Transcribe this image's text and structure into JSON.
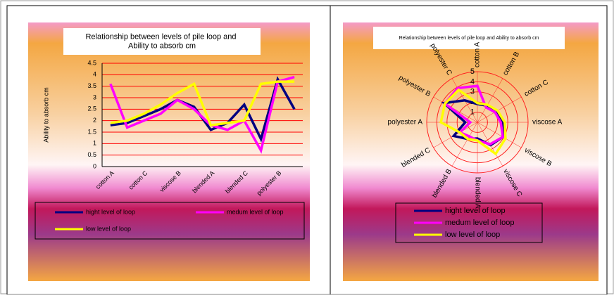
{
  "chart_data": [
    {
      "type": "line",
      "title": "Relationship between  levels of pile loop and Ability to absorb cm",
      "y_label": "Ability to absorb cm",
      "categories": [
        "cotton A",
        null,
        "cotton C",
        null,
        "viscose B",
        null,
        "blended A",
        null,
        "blended C",
        null,
        "polyester B",
        null
      ],
      "ylim": [
        0,
        4.5
      ],
      "yticks": [
        0,
        0.5,
        1,
        1.5,
        2,
        2.5,
        3,
        3.5,
        4,
        4.5
      ],
      "grid": true,
      "series": [
        {
          "name": "hight level of loop",
          "color": "#000080",
          "values": [
            1.8,
            1.9,
            2.2,
            2.5,
            2.9,
            2.6,
            1.6,
            1.9,
            2.7,
            1.2,
            3.8,
            2.5
          ]
        },
        {
          "name": "medum level of loop",
          "color": "#ff00ff",
          "values": [
            3.6,
            1.7,
            2.0,
            2.3,
            2.9,
            2.5,
            1.8,
            1.6,
            2.0,
            0.7,
            3.7,
            3.9
          ]
        },
        {
          "name": "low level of loop",
          "color": "#ffff00",
          "values": [
            1.9,
            2.0,
            2.3,
            2.7,
            3.2,
            3.6,
            1.8,
            1.9,
            2.0,
            3.6,
            3.7,
            3.7
          ]
        }
      ]
    },
    {
      "type": "radar",
      "title": "Relationship  between   levels  of pile  loop  and  Ability  to absorb  cm",
      "categories": [
        "cotton A",
        "cotton B",
        "cotton C",
        "viscose A",
        "viscose B",
        "viscose C",
        "blended A",
        "blended B",
        "blended C",
        "polyester A",
        "polyester B",
        "polyester C"
      ],
      "rlim": [
        0,
        5
      ],
      "rticks": [
        1,
        2,
        3,
        4,
        5
      ],
      "series": [
        {
          "name": "hight level of loop",
          "color": "#000080",
          "values": [
            1.8,
            1.9,
            2.2,
            2.5,
            2.9,
            2.6,
            1.6,
            1.9,
            2.7,
            1.2,
            3.8,
            2.5
          ]
        },
        {
          "name": "medum level of loop",
          "color": "#ff00ff",
          "values": [
            3.6,
            1.7,
            2.0,
            2.3,
            2.9,
            2.5,
            1.8,
            1.6,
            2.0,
            0.7,
            3.7,
            3.9
          ]
        },
        {
          "name": "low level of loop",
          "color": "#ffff00",
          "values": [
            1.9,
            2.0,
            2.3,
            2.7,
            3.2,
            3.6,
            1.8,
            1.9,
            2.0,
            3.6,
            3.7,
            3.7
          ]
        }
      ]
    }
  ]
}
